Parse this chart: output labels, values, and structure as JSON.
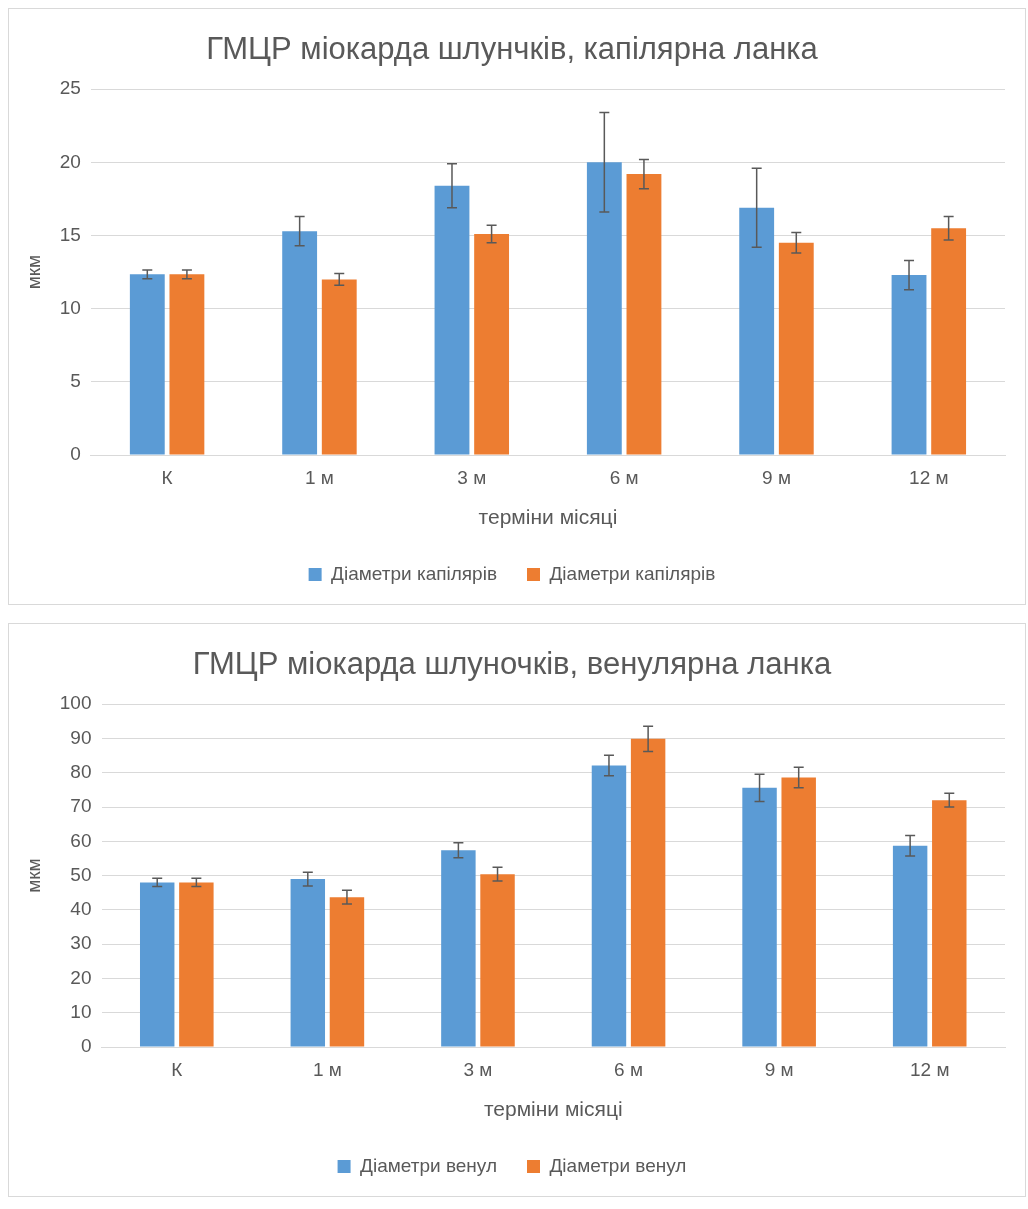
{
  "chart_data": [
    {
      "type": "bar",
      "title": "ГМЦР міокарда шлунчків, капілярна ланка",
      "xlabel": "терміни місяці",
      "ylabel": "мкм",
      "categories": [
        "К",
        "1 м",
        "3 м",
        "6 м",
        "9 м",
        "12 м"
      ],
      "series": [
        {
          "name": "Діаметри капілярів",
          "color": "#5b9bd5",
          "values": [
            12.35,
            15.3,
            18.4,
            20.0,
            16.9,
            12.3
          ],
          "errors": [
            0.3,
            1.0,
            1.5,
            3.4,
            2.7,
            1.0
          ]
        },
        {
          "name": "Діаметри капілярів",
          "color": "#ed7d31",
          "values": [
            12.35,
            12.0,
            15.1,
            19.2,
            14.5,
            15.5
          ],
          "errors": [
            0.3,
            0.4,
            0.6,
            1.0,
            0.7,
            0.8
          ]
        }
      ],
      "ylim": [
        0,
        25
      ],
      "yticks": [
        0,
        5,
        10,
        15,
        20,
        25
      ],
      "grid": "y",
      "legend": "bottom"
    },
    {
      "type": "bar",
      "title": "ГМЦР міокарда шлуночків, венулярна ланка",
      "xlabel": "терміни місяці",
      "ylabel": "мкм",
      "categories": [
        "К",
        "1 м",
        "3 м",
        "6 м",
        "9 м",
        "12 м"
      ],
      "series": [
        {
          "name": "Діаметри венул",
          "color": "#5b9bd5",
          "values": [
            48,
            49,
            57.4,
            82.1,
            75.6,
            58.7
          ],
          "errors": [
            1.2,
            2,
            2.2,
            3,
            4,
            3
          ]
        },
        {
          "name": "Діаметри венул",
          "color": "#ed7d31",
          "values": [
            48,
            43.7,
            50.4,
            89.9,
            78.6,
            72
          ],
          "errors": [
            1.2,
            2,
            2,
            3.7,
            3,
            2
          ]
        }
      ],
      "ylim": [
        0,
        100
      ],
      "yticks": [
        0,
        10,
        20,
        30,
        40,
        50,
        60,
        70,
        80,
        90,
        100
      ],
      "grid": "y",
      "legend": "bottom"
    }
  ]
}
